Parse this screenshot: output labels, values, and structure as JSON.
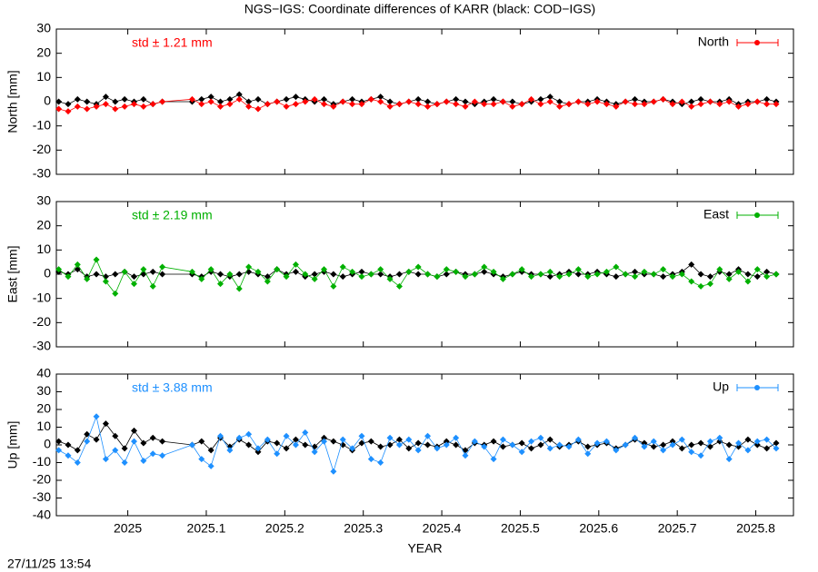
{
  "chart_data": [
    {
      "type": "line",
      "title": "NGS−IGS: Coordinate differences of KARR (black: COD−IGS)",
      "ylabel": "North [mm]",
      "annotation": "std ± 1.21 mm",
      "xlim": [
        2024.909,
        2025.848
      ],
      "ylim": [
        -30,
        30
      ],
      "yticks": [
        -30,
        -20,
        -10,
        0,
        10,
        20,
        30
      ],
      "x": [
        2024.912,
        2024.924,
        2024.936,
        2024.948,
        2024.96,
        2024.972,
        2024.984,
        2024.996,
        2025.008,
        2025.02,
        2025.032,
        2025.044,
        2025.082,
        2025.094,
        2025.106,
        2025.118,
        2025.13,
        2025.142,
        2025.154,
        2025.166,
        2025.178,
        2025.19,
        2025.202,
        2025.214,
        2025.226,
        2025.238,
        2025.25,
        2025.262,
        2025.274,
        2025.286,
        2025.298,
        2025.31,
        2025.322,
        2025.334,
        2025.346,
        2025.358,
        2025.37,
        2025.382,
        2025.394,
        2025.406,
        2025.418,
        2025.43,
        2025.442,
        2025.454,
        2025.466,
        2025.478,
        2025.49,
        2025.502,
        2025.514,
        2025.526,
        2025.538,
        2025.55,
        2025.562,
        2025.574,
        2025.586,
        2025.598,
        2025.61,
        2025.622,
        2025.634,
        2025.646,
        2025.658,
        2025.67,
        2025.682,
        2025.694,
        2025.706,
        2025.718,
        2025.73,
        2025.742,
        2025.754,
        2025.766,
        2025.778,
        2025.79,
        2025.802,
        2025.814,
        2025.826
      ],
      "series": [
        {
          "name": "North",
          "color": "#ff0000",
          "values": [
            -3,
            -4,
            -2,
            -3,
            -2,
            -1,
            -3,
            -2,
            -1,
            -2,
            -1,
            0,
            1,
            -1,
            0,
            -2,
            -1,
            1,
            -2,
            -3,
            -1,
            0,
            -2,
            -1,
            0,
            1,
            -1,
            -2,
            0,
            -1,
            -1,
            1,
            0,
            -2,
            -1,
            0,
            -1,
            -2,
            -1,
            0,
            -1,
            -2,
            0,
            -1,
            -1,
            0,
            -2,
            -1,
            1,
            -1,
            0,
            -2,
            -1,
            0,
            -1,
            0,
            -1,
            -2,
            0,
            -1,
            -1,
            0,
            1,
            -1,
            0,
            -2,
            -1,
            0,
            -1,
            0,
            -2,
            -1,
            0,
            -1,
            -1
          ]
        },
        {
          "color": "#000000",
          "values": [
            0,
            -1,
            1,
            0,
            -1,
            2,
            0,
            1,
            0,
            1,
            -1,
            0,
            0,
            1,
            2,
            0,
            1,
            3,
            0,
            1,
            -1,
            0,
            1,
            2,
            1,
            0,
            1,
            -1,
            0,
            1,
            0,
            1,
            2,
            0,
            -1,
            0,
            1,
            0,
            -1,
            0,
            1,
            0,
            -1,
            0,
            1,
            0,
            0,
            -1,
            0,
            1,
            2,
            0,
            -1,
            0,
            0,
            1,
            0,
            -1,
            0,
            1,
            0,
            0,
            1,
            0,
            -1,
            0,
            1,
            0,
            0,
            1,
            -1,
            0,
            0,
            1,
            0
          ]
        }
      ]
    },
    {
      "type": "line",
      "ylabel": "East [mm]",
      "annotation": "std ± 2.19 mm",
      "xlim": [
        2024.909,
        2025.848
      ],
      "ylim": [
        -30,
        30
      ],
      "yticks": [
        -30,
        -20,
        -10,
        0,
        10,
        20,
        30
      ],
      "x": [
        2024.912,
        2024.924,
        2024.936,
        2024.948,
        2024.96,
        2024.972,
        2024.984,
        2024.996,
        2025.008,
        2025.02,
        2025.032,
        2025.044,
        2025.082,
        2025.094,
        2025.106,
        2025.118,
        2025.13,
        2025.142,
        2025.154,
        2025.166,
        2025.178,
        2025.19,
        2025.202,
        2025.214,
        2025.226,
        2025.238,
        2025.25,
        2025.262,
        2025.274,
        2025.286,
        2025.298,
        2025.31,
        2025.322,
        2025.334,
        2025.346,
        2025.358,
        2025.37,
        2025.382,
        2025.394,
        2025.406,
        2025.418,
        2025.43,
        2025.442,
        2025.454,
        2025.466,
        2025.478,
        2025.49,
        2025.502,
        2025.514,
        2025.526,
        2025.538,
        2025.55,
        2025.562,
        2025.574,
        2025.586,
        2025.598,
        2025.61,
        2025.622,
        2025.634,
        2025.646,
        2025.658,
        2025.67,
        2025.682,
        2025.694,
        2025.706,
        2025.718,
        2025.73,
        2025.742,
        2025.754,
        2025.766,
        2025.778,
        2025.79,
        2025.802,
        2025.814,
        2025.826
      ],
      "series": [
        {
          "name": "East",
          "color": "#00b000",
          "values": [
            2,
            -1,
            4,
            -2,
            6,
            -3,
            -8,
            1,
            -4,
            2,
            -5,
            3,
            1,
            -2,
            2,
            -4,
            0,
            -6,
            3,
            1,
            -3,
            2,
            -1,
            4,
            0,
            -2,
            2,
            -5,
            3,
            1,
            -1,
            0,
            2,
            -2,
            -5,
            1,
            3,
            0,
            -1,
            2,
            1,
            -1,
            0,
            3,
            1,
            -2,
            0,
            2,
            -1,
            0,
            1,
            -1,
            0,
            2,
            -1,
            0,
            1,
            3,
            0,
            -1,
            1,
            0,
            2,
            -1,
            0,
            -3,
            -5,
            -4,
            2,
            -2,
            1,
            -3,
            2,
            -1,
            0
          ]
        },
        {
          "color": "#000000",
          "values": [
            1,
            0,
            2,
            -1,
            0,
            -1,
            0,
            1,
            -1,
            0,
            1,
            0,
            0,
            -1,
            1,
            0,
            -1,
            0,
            1,
            0,
            -1,
            2,
            0,
            1,
            -1,
            0,
            1,
            0,
            -1,
            0,
            1,
            0,
            0,
            -1,
            0,
            1,
            0,
            0,
            -1,
            0,
            1,
            0,
            0,
            1,
            0,
            -1,
            0,
            1,
            0,
            0,
            -1,
            0,
            1,
            0,
            0,
            1,
            0,
            -1,
            0,
            1,
            0,
            0,
            -1,
            0,
            1,
            4,
            0,
            -1,
            1,
            0,
            2,
            0,
            -1,
            1,
            0
          ]
        }
      ]
    },
    {
      "type": "line",
      "ylabel": "Up [mm]",
      "annotation": "std ± 3.88 mm",
      "xlabel": "YEAR",
      "xlim": [
        2024.909,
        2025.848
      ],
      "xticks": [
        2025,
        2025.1,
        2025.2,
        2025.3,
        2025.4,
        2025.5,
        2025.6,
        2025.7,
        2025.8
      ],
      "ylim": [
        -40,
        40
      ],
      "yticks": [
        -40,
        -30,
        -20,
        -10,
        0,
        10,
        20,
        30,
        40
      ],
      "x": [
        2024.912,
        2024.924,
        2024.936,
        2024.948,
        2024.96,
        2024.972,
        2024.984,
        2024.996,
        2025.008,
        2025.02,
        2025.032,
        2025.044,
        2025.082,
        2025.094,
        2025.106,
        2025.118,
        2025.13,
        2025.142,
        2025.154,
        2025.166,
        2025.178,
        2025.19,
        2025.202,
        2025.214,
        2025.226,
        2025.238,
        2025.25,
        2025.262,
        2025.274,
        2025.286,
        2025.298,
        2025.31,
        2025.322,
        2025.334,
        2025.346,
        2025.358,
        2025.37,
        2025.382,
        2025.394,
        2025.406,
        2025.418,
        2025.43,
        2025.442,
        2025.454,
        2025.466,
        2025.478,
        2025.49,
        2025.502,
        2025.514,
        2025.526,
        2025.538,
        2025.55,
        2025.562,
        2025.574,
        2025.586,
        2025.598,
        2025.61,
        2025.622,
        2025.634,
        2025.646,
        2025.658,
        2025.67,
        2025.682,
        2025.694,
        2025.706,
        2025.718,
        2025.73,
        2025.742,
        2025.754,
        2025.766,
        2025.778,
        2025.79,
        2025.802,
        2025.814,
        2025.826
      ],
      "series": [
        {
          "name": "Up",
          "color": "#1e90ff",
          "values": [
            -3,
            -6,
            -10,
            2,
            16,
            -8,
            -3,
            -10,
            2,
            -9,
            -5,
            -6,
            0,
            -8,
            -12,
            5,
            -3,
            4,
            6,
            -2,
            3,
            -5,
            5,
            0,
            7,
            -4,
            2,
            -15,
            3,
            -2,
            5,
            -8,
            -10,
            4,
            0,
            3,
            -3,
            5,
            -2,
            0,
            4,
            -6,
            2,
            -1,
            -8,
            3,
            0,
            -4,
            2,
            4,
            -2,
            0,
            -1,
            3,
            -5,
            1,
            2,
            -3,
            0,
            4,
            -1,
            2,
            -3,
            0,
            3,
            -4,
            -6,
            2,
            4,
            -8,
            1,
            -3,
            2,
            3,
            -2
          ]
        },
        {
          "color": "#000000",
          "values": [
            2,
            0,
            -3,
            6,
            3,
            12,
            5,
            -2,
            8,
            1,
            4,
            2,
            0,
            2,
            -3,
            4,
            -1,
            3,
            0,
            -4,
            2,
            1,
            -2,
            3,
            0,
            -1,
            4,
            2,
            0,
            -3,
            1,
            2,
            -1,
            0,
            3,
            -2,
            1,
            0,
            -1,
            2,
            0,
            -3,
            1,
            0,
            2,
            -1,
            0,
            1,
            -2,
            0,
            3,
            -1,
            0,
            2,
            -1,
            0,
            1,
            -2,
            0,
            3,
            1,
            -1,
            0,
            2,
            -2,
            0,
            1,
            -1,
            2,
            0,
            -1,
            3,
            0,
            -2,
            1
          ]
        }
      ]
    }
  ],
  "timestamp": "27/11/25 13:54"
}
